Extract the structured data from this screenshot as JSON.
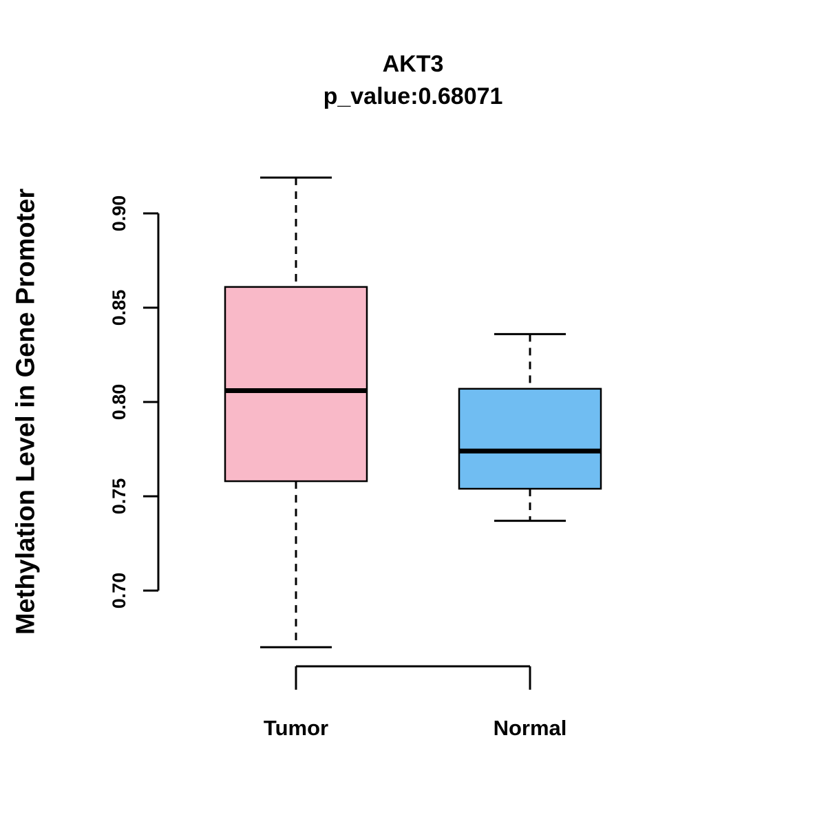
{
  "chart_data": {
    "type": "boxplot",
    "title": "AKT3",
    "subtitle": "p_value:0.68071",
    "ylabel": "Methylation Level in Gene Promoter",
    "xlabel": "",
    "ylim": [
      0.7,
      0.9
    ],
    "yticks": [
      0.7,
      0.75,
      0.8,
      0.85,
      0.9
    ],
    "grid": false,
    "legend": "none",
    "categories": [
      "Tumor",
      "Normal"
    ],
    "series": [
      {
        "name": "Tumor",
        "color": "#F9B9C8",
        "min": 0.67,
        "q1": 0.758,
        "median": 0.806,
        "q3": 0.861,
        "max": 0.919
      },
      {
        "name": "Normal",
        "color": "#70BDF2",
        "min": 0.737,
        "q1": 0.754,
        "median": 0.774,
        "q3": 0.807,
        "max": 0.836
      }
    ],
    "colors": {
      "axis": "#000000",
      "box_stroke": "#000000",
      "background": "#ffffff"
    }
  }
}
